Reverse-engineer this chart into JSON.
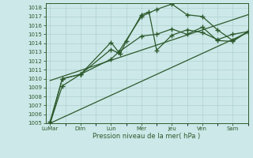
{
  "xlabel": "Pression niveau de la mer( hPa )",
  "bg_color": "#cce8e8",
  "grid_color": "#aacccc",
  "line_color": "#2d5a2d",
  "ylim": [
    1005,
    1018.5
  ],
  "yticks": [
    1005,
    1006,
    1007,
    1008,
    1009,
    1010,
    1011,
    1012,
    1013,
    1014,
    1015,
    1016,
    1017,
    1018
  ],
  "xtick_labels": [
    "LuMar",
    "Dim",
    "Lun",
    "Mer",
    "Jeu",
    "Ven",
    "Sam"
  ],
  "xtick_positions": [
    0,
    2,
    4,
    6,
    8,
    10,
    12
  ],
  "xlim": [
    -0.3,
    13.0
  ],
  "series": [
    {
      "x": [
        0.0,
        0.8,
        2.0,
        4.0,
        4.6,
        5.0,
        6.0,
        6.5,
        7.0,
        8.0,
        9.0,
        10.0,
        11.0,
        12.0,
        13.0
      ],
      "y": [
        1005.0,
        1009.2,
        1010.5,
        1013.3,
        1012.8,
        1014.2,
        1017.2,
        1017.5,
        1013.2,
        1014.9,
        1015.5,
        1015.2,
        1014.4,
        1015.0,
        1015.3
      ],
      "marker": "+",
      "ms": 4,
      "lw": 0.9
    },
    {
      "x": [
        0.0,
        0.8,
        2.0,
        4.0,
        4.5,
        6.0,
        7.0,
        8.0,
        9.0,
        10.0,
        11.0,
        12.0,
        13.0
      ],
      "y": [
        1005.2,
        1010.0,
        1010.5,
        1014.1,
        1013.0,
        1017.0,
        1017.8,
        1018.4,
        1017.2,
        1017.0,
        1015.5,
        1014.3,
        1015.3
      ],
      "marker": "+",
      "ms": 4,
      "lw": 0.9
    },
    {
      "x": [
        0.0,
        0.8,
        2.0,
        4.0,
        4.5,
        6.0,
        7.0,
        8.0,
        9.0,
        10.0,
        11.0,
        12.0,
        13.0
      ],
      "y": [
        1005.0,
        1010.0,
        1010.5,
        1012.2,
        1013.0,
        1014.8,
        1015.0,
        1015.6,
        1015.0,
        1015.8,
        1014.3,
        1014.2,
        1015.3
      ],
      "marker": "+",
      "ms": 4,
      "lw": 0.9
    },
    {
      "x": [
        0.0,
        13.0
      ],
      "y": [
        1009.8,
        1017.2
      ],
      "marker": null,
      "ms": 0,
      "lw": 0.9
    },
    {
      "x": [
        0.0,
        13.0
      ],
      "y": [
        1005.0,
        1015.2
      ],
      "marker": null,
      "ms": 0,
      "lw": 0.9
    }
  ]
}
